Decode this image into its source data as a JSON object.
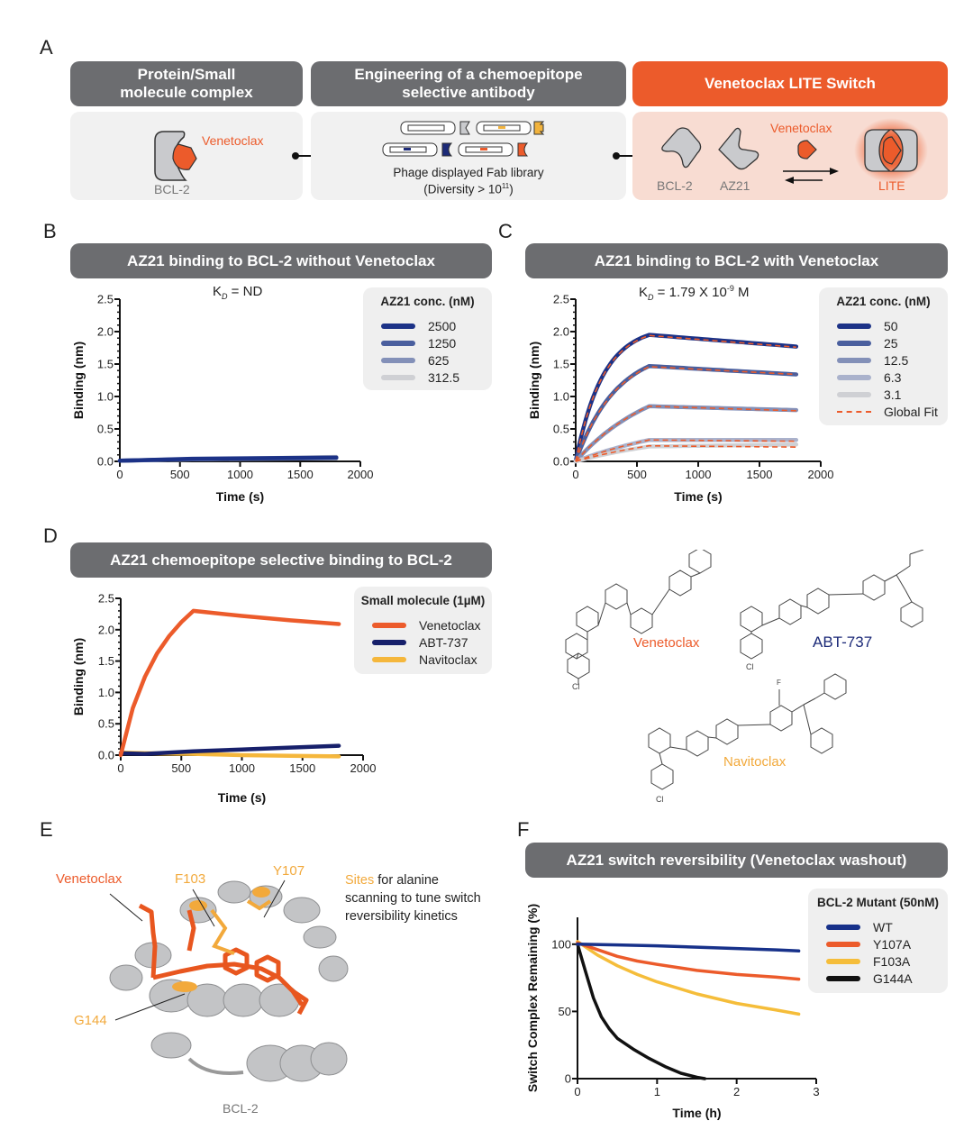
{
  "panels": {
    "A": {
      "letter": "A",
      "steps": [
        {
          "title_line1": "Protein/Small",
          "title_line2": "molecule complex",
          "label_protein": "BCL-2",
          "label_drug": "Venetoclax"
        },
        {
          "title_line1": "Engineering of a chemoepitope",
          "title_line2": "selective antibody",
          "caption_line1": "Phage displayed Fab library",
          "caption_line2_prefix": "(Diversity > 10",
          "caption_line2_sup": "11",
          "caption_line2_suffix": ")"
        },
        {
          "title": "Venetoclax LITE Switch",
          "label_bcl2": "BCL-2",
          "label_az21": "AZ21",
          "label_drug": "Venetoclax",
          "label_lite": "LITE"
        }
      ]
    },
    "B": {
      "letter": "B",
      "title": "AZ21 binding to BCL-2 without Venetoclax",
      "kd_prefix": "K",
      "kd_sub": "D",
      "kd_value": " = ND"
    },
    "C": {
      "letter": "C",
      "title": "AZ21 binding to BCL-2 with Venetoclax",
      "kd_prefix": "K",
      "kd_sub": "D",
      "kd_value": " = 1.79 X 10",
      "kd_sup": "-9",
      "kd_unit": " M"
    },
    "D": {
      "letter": "D",
      "title": "AZ21 chemoepitope selective binding to BCL-2",
      "structures": [
        {
          "name": "Venetoclax",
          "color": "#ec5b2b"
        },
        {
          "name": "ABT-737",
          "color": "#1c2a78"
        },
        {
          "name": "Navitoclax",
          "color": "#f2a93b"
        }
      ]
    },
    "E": {
      "letter": "E",
      "label_drug": "Venetoclax",
      "sites": [
        "F103",
        "Y107",
        "G144"
      ],
      "note_highlight": "Sites",
      "note_line1_rest": " for alanine",
      "note_line2": "scanning to tune switch",
      "note_line3": "reversibility kinetics",
      "protein_label": "BCL-2"
    },
    "F": {
      "letter": "F",
      "title": "AZ21 switch reversibility (Venetoclax washout)"
    }
  },
  "chart_data": [
    {
      "id": "B",
      "type": "line",
      "title": "AZ21 binding to BCL-2 without Venetoclax",
      "xlabel": "Time (s)",
      "ylabel": "Binding (nm)",
      "xlim": [
        0,
        2000
      ],
      "ylim": [
        0,
        2.5
      ],
      "xticks": [
        "0",
        "500",
        "1000",
        "1500",
        "2000"
      ],
      "yticks": [
        "0.0",
        "0.5",
        "1.0",
        "1.5",
        "2.0",
        "2.5"
      ],
      "legend_title": "AZ21 conc. (nM)",
      "legend_position": "top-right",
      "series": [
        {
          "name": "2500",
          "color": "#1c3287",
          "x": [
            0,
            600,
            1800
          ],
          "y": [
            0.01,
            0.04,
            0.06
          ]
        },
        {
          "name": "1250",
          "color": "#4a5f9e",
          "x": [
            0,
            600,
            1800
          ],
          "y": [
            0.01,
            0.035,
            0.055
          ]
        },
        {
          "name": "625",
          "color": "#8390b8",
          "x": [
            0,
            600,
            1800
          ],
          "y": [
            0.01,
            0.03,
            0.05
          ]
        },
        {
          "name": "312.5",
          "color": "#cfd0d4",
          "x": [
            0,
            600,
            1800
          ],
          "y": [
            0.01,
            0.03,
            0.07
          ]
        }
      ]
    },
    {
      "id": "C",
      "type": "line",
      "title": "AZ21 binding to BCL-2 with Venetoclax",
      "xlabel": "Time (s)",
      "ylabel": "Binding (nm)",
      "xlim": [
        0,
        2000
      ],
      "ylim": [
        0,
        2.5
      ],
      "xticks": [
        "0",
        "500",
        "1000",
        "1500",
        "2000"
      ],
      "yticks": [
        "0.0",
        "0.5",
        "1.0",
        "1.5",
        "2.0",
        "2.5"
      ],
      "legend_title": "AZ21 conc. (nM)",
      "legend_position": "top-right",
      "assoc_end": 600,
      "series": [
        {
          "name": "50",
          "color": "#1c3287",
          "plateau": 1.95,
          "end": 1.77,
          "k": 0.0045
        },
        {
          "name": "25",
          "color": "#4a5f9e",
          "plateau": 1.47,
          "end": 1.34,
          "k": 0.003
        },
        {
          "name": "12.5",
          "color": "#8390b8",
          "plateau": 0.85,
          "end": 0.79,
          "k": 0.0015
        },
        {
          "name": "6.3",
          "color": "#aab2cc",
          "plateau": 0.33,
          "end": 0.33,
          "k": 0.001
        },
        {
          "name": "3.1",
          "color": "#cfd0d4",
          "plateau": 0.23,
          "end": 0.26,
          "k": 0.001
        }
      ],
      "fit": {
        "name": "Global Fit",
        "color": "#ec5b2b",
        "plateaus": [
          1.94,
          1.46,
          0.85,
          0.33,
          0.24
        ],
        "ends": [
          1.76,
          1.34,
          0.78,
          0.31,
          0.22
        ]
      }
    },
    {
      "id": "D",
      "type": "line",
      "title": "AZ21 chemoepitope selective binding to BCL-2",
      "xlabel": "Time (s)",
      "ylabel": "Binding (nm)",
      "xlim": [
        0,
        2000
      ],
      "ylim": [
        0,
        2.5
      ],
      "xticks": [
        "0",
        "500",
        "1000",
        "1500",
        "2000"
      ],
      "yticks": [
        "0.0",
        "0.5",
        "1.0",
        "1.5",
        "2.0",
        "2.5"
      ],
      "legend_title": "Small molecule (1µM)",
      "legend_position": "top-right",
      "series": [
        {
          "name": "Venetoclax",
          "color": "#ec5b2b",
          "x": [
            0,
            100,
            200,
            300,
            400,
            500,
            600,
            1000,
            1400,
            1800
          ],
          "y": [
            0.0,
            0.75,
            1.25,
            1.62,
            1.9,
            2.12,
            2.3,
            2.22,
            2.15,
            2.09
          ]
        },
        {
          "name": "ABT-737",
          "color": "#17206b",
          "x": [
            0,
            200,
            600,
            1000,
            1400,
            1800
          ],
          "y": [
            0.03,
            0.02,
            0.06,
            0.09,
            0.12,
            0.15
          ]
        },
        {
          "name": "Navitoclax",
          "color": "#f5b73c",
          "x": [
            0,
            200,
            600,
            1000,
            1400,
            1800
          ],
          "y": [
            0.04,
            0.03,
            0.02,
            0.0,
            -0.01,
            -0.02
          ]
        }
      ]
    },
    {
      "id": "F",
      "type": "line",
      "title": "AZ21 switch reversibility (Venetoclax washout)",
      "xlabel": "Time (h)",
      "ylabel": "Switch Complex Remaining (%)",
      "xlim": [
        0,
        3
      ],
      "ylim": [
        0,
        120
      ],
      "xticks": [
        "0",
        "1",
        "2",
        "3"
      ],
      "yticks": [
        "0",
        "50",
        "100"
      ],
      "legend_title": "BCL-2 Mutant (50nM)",
      "legend_position": "top-right",
      "series": [
        {
          "name": "WT",
          "color": "#17318a",
          "x": [
            0,
            0.5,
            1,
            1.5,
            2,
            2.5,
            2.78
          ],
          "y": [
            100,
            99.5,
            98.8,
            97.8,
            96.8,
            95.8,
            95
          ]
        },
        {
          "name": "Y107A",
          "color": "#ec5b2b",
          "x": [
            0,
            0.25,
            0.5,
            0.75,
            1,
            1.5,
            2,
            2.5,
            2.78
          ],
          "y": [
            101,
            96,
            91,
            87.5,
            85,
            80.5,
            77.5,
            75.5,
            74
          ]
        },
        {
          "name": "F103A",
          "color": "#f5bd3a",
          "x": [
            0,
            0.25,
            0.5,
            0.75,
            1,
            1.5,
            2,
            2.5,
            2.78
          ],
          "y": [
            102,
            92,
            84,
            77.5,
            72,
            63,
            56,
            51,
            48
          ]
        },
        {
          "name": "G144A",
          "color": "#111111",
          "x": [
            0,
            0.1,
            0.2,
            0.3,
            0.4,
            0.5,
            0.7,
            0.9,
            1.1,
            1.3,
            1.5,
            1.6
          ],
          "y": [
            100,
            80,
            60,
            46,
            37,
            30,
            22,
            15,
            9,
            4,
            1,
            0
          ]
        }
      ]
    }
  ]
}
